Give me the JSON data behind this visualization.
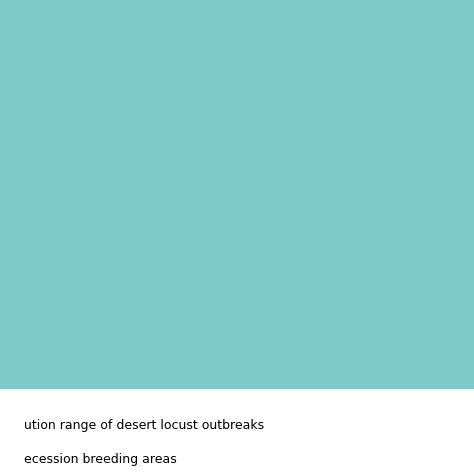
{
  "title_line1": "ution range of desert locust outbreaks",
  "title_line2": "ecession breeding areas",
  "ocean_color": "#7ec8c8",
  "land_color": "#d0d0d0",
  "invasion_color": "#f4b8b8",
  "recession_color": "#cc2200",
  "grid_color": "#888888",
  "background_color": "#ffffff",
  "map_extent": [
    -20,
    100,
    -10,
    55
  ],
  "figsize": [
    4.74,
    4.74
  ],
  "dpi": 100
}
